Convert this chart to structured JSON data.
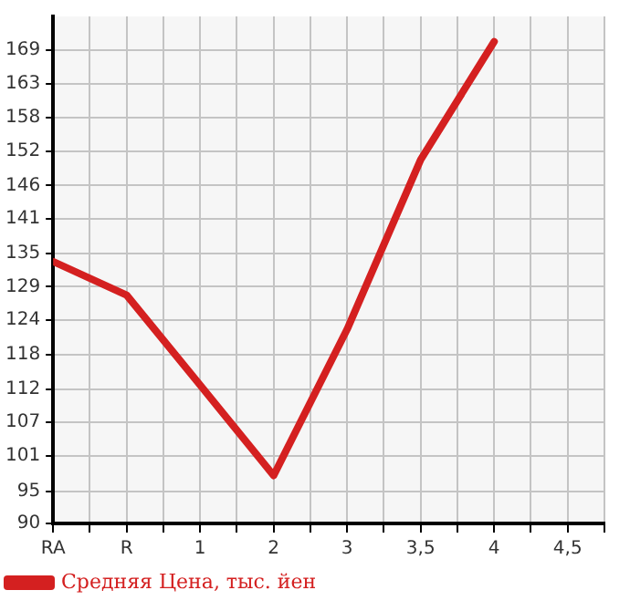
{
  "chart_data": {
    "type": "line",
    "categories": [
      "RA",
      "R",
      "1",
      "2",
      "3",
      "3,5",
      "4",
      "4,5"
    ],
    "series": [
      {
        "name": "Средняя Цена, тыс. йен",
        "color": "#d42020",
        "values": [
          133.7,
          128.1,
          113.1,
          98.0,
          122.4,
          150.7,
          170.4,
          null
        ]
      }
    ],
    "ylim": [
      90,
      174.6
    ],
    "yticks": [
      90,
      {
        "value": 95.4,
        "label": "95"
      },
      {
        "value": 101.3,
        "label": "101"
      },
      {
        "value": 106.9,
        "label": "107"
      },
      {
        "value": 112.4,
        "label": "112"
      },
      {
        "value": 118.2,
        "label": "118"
      },
      {
        "value": 123.9,
        "label": "124"
      },
      {
        "value": 129.5,
        "label": "129"
      },
      {
        "value": 135.1,
        "label": "135"
      },
      {
        "value": 140.8,
        "label": "141"
      },
      {
        "value": 146.4,
        "label": "146"
      },
      {
        "value": 152.1,
        "label": "152"
      },
      {
        "value": 157.7,
        "label": "158"
      },
      {
        "value": 163.3,
        "label": "163"
      },
      169
    ],
    "grid": true,
    "legend": "bottom left",
    "marker": "none",
    "line_style": "solid"
  }
}
